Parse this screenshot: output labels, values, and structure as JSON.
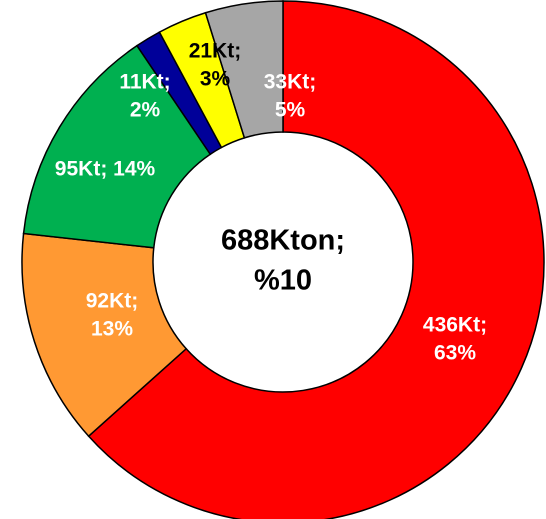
{
  "chart_data": {
    "type": "donut",
    "categories": [
      null,
      null,
      null,
      null,
      null,
      null
    ],
    "values": [
      436,
      92,
      95,
      11,
      21,
      33
    ],
    "value_labels": [
      [
        "436Kt;",
        "63%"
      ],
      [
        "92Kt;",
        "13%"
      ],
      [
        "95Kt;  14%"
      ],
      [
        "11Kt;",
        "2%"
      ],
      [
        "21Kt;",
        "3%"
      ],
      [
        "33Kt;",
        "5%"
      ]
    ],
    "colors": [
      "#ff0000",
      "#ff9933",
      "#00b050",
      "#000099",
      "#ffff00",
      "#a6a6a6"
    ],
    "label_colors": [
      "#ffffff",
      "#ffffff",
      "#ffffff",
      "#ffffff",
      "#000000",
      "#ffffff"
    ],
    "center_label": [
      "688Kton;",
      "%10"
    ]
  }
}
